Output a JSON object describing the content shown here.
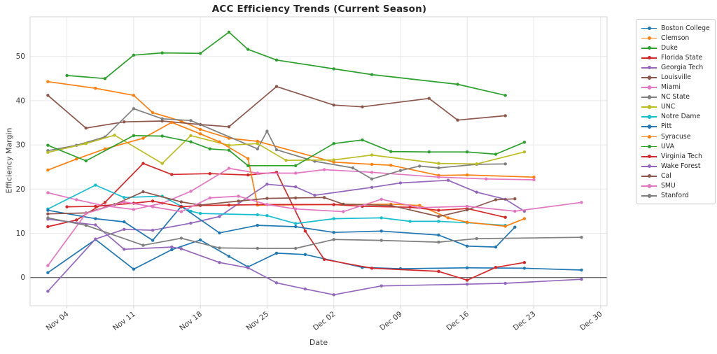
{
  "title": "ACC Efficiency Trends (Current Season)",
  "axes": {
    "xlabel": "Date",
    "ylabel": "Efficiency Margin",
    "x_tick_labels": [
      "Nov 04",
      "Nov 11",
      "Nov 18",
      "Nov 25",
      "Dec 02",
      "Dec 09",
      "Dec 16",
      "Dec 23",
      "Dec 30"
    ],
    "y_tick_labels": [
      "0",
      "10",
      "20",
      "30",
      "40",
      "50"
    ]
  },
  "chart_data": {
    "type": "line",
    "title": "ACC Efficiency Trends (Current Season)",
    "xlabel": "Date",
    "ylabel": "Efficiency Margin",
    "x_tick_labels": [
      "Nov 04",
      "Nov 11",
      "Nov 18",
      "Nov 25",
      "Dec 02",
      "Dec 09",
      "Dec 16",
      "Dec 23",
      "Dec 30"
    ],
    "y_ticks": [
      0,
      10,
      20,
      30,
      40,
      50
    ],
    "ylim": [
      -6.4,
      59.0
    ],
    "grid": true,
    "zero_line": true,
    "legend_position": "outside-right",
    "series": [
      {
        "name": "Boston College",
        "color": "#1f77b4",
        "points": [
          [
            "Nov 02",
            1.1
          ],
          [
            "Nov 07",
            8.6
          ],
          [
            "Nov 11",
            1.9
          ],
          [
            "Nov 15",
            6.3
          ],
          [
            "Nov 18",
            8.5
          ],
          [
            "Nov 21",
            4.8
          ],
          [
            "Nov 23",
            2.4
          ],
          [
            "Nov 26",
            5.5
          ],
          [
            "Nov 29",
            5.2
          ],
          [
            "Dec 05",
            2.3
          ],
          [
            "Dec 09",
            2.0
          ],
          [
            "Dec 16",
            2.2
          ],
          [
            "Dec 22",
            2.1
          ],
          [
            "Dec 28",
            1.7
          ]
        ]
      },
      {
        "name": "Clemson",
        "color": "#ff7f0e",
        "points": [
          [
            "Nov 02",
            44.3
          ],
          [
            "Nov 07",
            42.8
          ],
          [
            "Nov 11",
            41.2
          ],
          [
            "Nov 13",
            37.3
          ],
          [
            "Nov 16",
            35.4
          ],
          [
            "Nov 18",
            33.5
          ],
          [
            "Nov 21",
            31.5
          ],
          [
            "Nov 24",
            30.8
          ],
          [
            "Dec 02",
            26.1
          ],
          [
            "Dec 06",
            25.6
          ],
          [
            "Dec 08",
            25.4
          ],
          [
            "Dec 13",
            23.1
          ],
          [
            "Dec 16",
            23.2
          ],
          [
            "Dec 23",
            22.7
          ]
        ]
      },
      {
        "name": "Duke",
        "color": "#2ca02c",
        "points": [
          [
            "Nov 04",
            45.7
          ],
          [
            "Nov 08",
            45.0
          ],
          [
            "Nov 11",
            50.3
          ],
          [
            "Nov 14",
            50.8
          ],
          [
            "Nov 18",
            50.7
          ],
          [
            "Nov 21",
            55.5
          ],
          [
            "Nov 23",
            51.6
          ],
          [
            "Nov 26",
            49.2
          ],
          [
            "Dec 02",
            47.2
          ],
          [
            "Dec 06",
            45.9
          ],
          [
            "Dec 15",
            43.7
          ],
          [
            "Dec 20",
            41.2
          ]
        ]
      },
      {
        "name": "Florida State",
        "color": "#d62728",
        "points": [
          [
            "Nov 02",
            11.5
          ],
          [
            "Nov 05",
            13.0
          ],
          [
            "Nov 08",
            17.0
          ],
          [
            "Nov 12",
            25.8
          ],
          [
            "Nov 15",
            23.3
          ],
          [
            "Nov 19",
            23.5
          ],
          [
            "Nov 23",
            23.2
          ],
          [
            "Nov 26",
            23.8
          ],
          [
            "Nov 29",
            10.5
          ],
          [
            "Dec 01",
            4.1
          ],
          [
            "Dec 06",
            2.1
          ],
          [
            "Dec 13",
            1.4
          ],
          [
            "Dec 16",
            -0.6
          ],
          [
            "Dec 19",
            2.3
          ],
          [
            "Dec 22",
            3.4
          ]
        ]
      },
      {
        "name": "Georgia Tech",
        "color": "#9467bd",
        "points": [
          [
            "Nov 02",
            -3.1
          ],
          [
            "Nov 07",
            8.7
          ],
          [
            "Nov 10",
            10.9
          ],
          [
            "Nov 13",
            10.7
          ],
          [
            "Nov 17",
            12.3
          ],
          [
            "Nov 20",
            13.8
          ],
          [
            "Nov 25",
            21.1
          ],
          [
            "Nov 28",
            20.5
          ],
          [
            "Nov 30",
            18.6
          ],
          [
            "Dec 06",
            20.4
          ],
          [
            "Dec 09",
            21.4
          ],
          [
            "Dec 14",
            22.0
          ],
          [
            "Dec 17",
            19.3
          ],
          [
            "Dec 20",
            17.7
          ],
          [
            "Dec 22",
            15.0
          ]
        ]
      },
      {
        "name": "Louisville",
        "color": "#8c564b",
        "points": [
          [
            "Nov 02",
            41.2
          ],
          [
            "Nov 06",
            33.8
          ],
          [
            "Nov 10",
            35.2
          ],
          [
            "Nov 14",
            35.4
          ],
          [
            "Nov 18",
            34.6
          ],
          [
            "Nov 21",
            34.1
          ],
          [
            "Nov 26",
            43.2
          ],
          [
            "Dec 02",
            39.0
          ],
          [
            "Dec 05",
            38.6
          ],
          [
            "Dec 12",
            40.5
          ],
          [
            "Dec 15",
            35.6
          ],
          [
            "Dec 20",
            36.6
          ]
        ]
      },
      {
        "name": "Miami",
        "color": "#e377c2",
        "points": [
          [
            "Nov 02",
            19.2
          ],
          [
            "Nov 05",
            17.6
          ],
          [
            "Nov 08",
            16.2
          ],
          [
            "Nov 11",
            15.4
          ],
          [
            "Nov 14",
            16.8
          ],
          [
            "Nov 17",
            19.5
          ],
          [
            "Nov 21",
            24.7
          ],
          [
            "Nov 24",
            23.6
          ],
          [
            "Nov 28",
            23.6
          ],
          [
            "Dec 01",
            24.4
          ],
          [
            "Dec 06",
            23.8
          ],
          [
            "Dec 13",
            22.7
          ],
          [
            "Dec 18",
            22.3
          ],
          [
            "Dec 23",
            22.1
          ]
        ]
      },
      {
        "name": "NC State",
        "color": "#7f7f7f",
        "points": [
          [
            "Nov 02",
            28.7
          ],
          [
            "Nov 05",
            29.9
          ],
          [
            "Nov 08",
            31.8
          ],
          [
            "Nov 11",
            38.2
          ],
          [
            "Nov 14",
            35.9
          ],
          [
            "Nov 17",
            35.5
          ],
          [
            "Nov 24",
            29.1
          ],
          [
            "Nov 25",
            33.1
          ],
          [
            "Nov 26",
            28.9
          ],
          [
            "Nov 30",
            26.3
          ],
          [
            "Dec 04",
            24.8
          ],
          [
            "Dec 06",
            22.3
          ],
          [
            "Dec 09",
            24.2
          ],
          [
            "Dec 11",
            25.2
          ],
          [
            "Dec 13",
            24.8
          ],
          [
            "Dec 17",
            25.6
          ],
          [
            "Dec 20",
            25.7
          ]
        ]
      },
      {
        "name": "UNC",
        "color": "#bcbd22",
        "points": [
          [
            "Nov 02",
            28.3
          ],
          [
            "Nov 06",
            30.3
          ],
          [
            "Nov 09",
            32.2
          ],
          [
            "Nov 14",
            25.8
          ],
          [
            "Nov 17",
            32.1
          ],
          [
            "Nov 21",
            29.9
          ],
          [
            "Nov 24",
            30.3
          ],
          [
            "Nov 27",
            26.5
          ],
          [
            "Dec 02",
            26.6
          ],
          [
            "Dec 06",
            27.7
          ],
          [
            "Dec 13",
            25.8
          ],
          [
            "Dec 17",
            25.7
          ],
          [
            "Dec 22",
            28.4
          ]
        ]
      },
      {
        "name": "Notre Dame",
        "color": "#17becf",
        "points": [
          [
            "Nov 02",
            15.5
          ],
          [
            "Nov 07",
            20.9
          ],
          [
            "Nov 10",
            18.1
          ],
          [
            "Nov 14",
            18.4
          ],
          [
            "Nov 17",
            15.0
          ],
          [
            "Nov 18",
            14.5
          ],
          [
            "Nov 24",
            14.2
          ],
          [
            "Nov 25",
            14.0
          ],
          [
            "Nov 28",
            12.2
          ],
          [
            "Dec 02",
            13.3
          ],
          [
            "Dec 07",
            13.5
          ],
          [
            "Dec 10",
            12.7
          ],
          [
            "Dec 13",
            12.7
          ],
          [
            "Dec 16",
            12.4
          ],
          [
            "Dec 20",
            11.8
          ]
        ]
      },
      {
        "name": "Pitt",
        "color": "#1f77b4",
        "points": [
          [
            "Nov 02",
            15.2
          ],
          [
            "Nov 07",
            13.3
          ],
          [
            "Nov 10",
            12.6
          ],
          [
            "Nov 13",
            8.4
          ],
          [
            "Nov 16",
            16.1
          ],
          [
            "Nov 20",
            10.1
          ],
          [
            "Nov 24",
            11.8
          ],
          [
            "Nov 28",
            11.5
          ],
          [
            "Dec 02",
            10.2
          ],
          [
            "Dec 07",
            10.5
          ],
          [
            "Dec 13",
            9.6
          ],
          [
            "Dec 16",
            7.1
          ],
          [
            "Dec 19",
            6.9
          ],
          [
            "Dec 21",
            11.4
          ]
        ]
      },
      {
        "name": "Syracuse",
        "color": "#ff7f0e",
        "points": [
          [
            "Nov 02",
            24.3
          ],
          [
            "Nov 05",
            26.8
          ],
          [
            "Nov 08",
            29.1
          ],
          [
            "Nov 12",
            31.5
          ],
          [
            "Nov 15",
            35.1
          ],
          [
            "Nov 18",
            32.5
          ],
          [
            "Nov 20",
            30.7
          ],
          [
            "Nov 23",
            26.9
          ],
          [
            "Nov 24",
            16.4
          ],
          [
            "Dec 02",
            16.5
          ],
          [
            "Dec 08",
            16.6
          ],
          [
            "Dec 11",
            16.3
          ],
          [
            "Dec 14",
            13.5
          ],
          [
            "Dec 16",
            12.5
          ],
          [
            "Dec 20",
            11.6
          ],
          [
            "Dec 22",
            13.3
          ]
        ]
      },
      {
        "name": "UVA",
        "color": "#2ca02c",
        "points": [
          [
            "Nov 02",
            29.9
          ],
          [
            "Nov 06",
            26.4
          ],
          [
            "Nov 11",
            32.1
          ],
          [
            "Nov 14",
            32.0
          ],
          [
            "Nov 17",
            30.7
          ],
          [
            "Nov 19",
            29.1
          ],
          [
            "Nov 21",
            28.8
          ],
          [
            "Nov 23",
            25.3
          ],
          [
            "Nov 28",
            25.3
          ],
          [
            "Dec 02",
            30.3
          ],
          [
            "Dec 05",
            31.1
          ],
          [
            "Dec 08",
            28.5
          ],
          [
            "Dec 12",
            28.4
          ],
          [
            "Dec 16",
            28.4
          ],
          [
            "Dec 19",
            27.9
          ],
          [
            "Dec 22",
            30.6
          ]
        ]
      },
      {
        "name": "Virginia Tech",
        "color": "#d62728",
        "points": [
          [
            "Nov 04",
            16.0
          ],
          [
            "Nov 07",
            16.1
          ],
          [
            "Nov 11",
            16.8
          ],
          [
            "Nov 13",
            17.3
          ],
          [
            "Nov 16",
            16.0
          ],
          [
            "Nov 18",
            16.3
          ],
          [
            "Nov 21",
            16.4
          ],
          [
            "Nov 25",
            16.5
          ],
          [
            "Dec 02",
            16.5
          ],
          [
            "Dec 05",
            16.1
          ],
          [
            "Dec 10",
            15.9
          ],
          [
            "Dec 13",
            15.2
          ],
          [
            "Dec 16",
            15.6
          ],
          [
            "Dec 20",
            13.6
          ]
        ]
      },
      {
        "name": "Wake Forest",
        "color": "#9467bd",
        "points": [
          [
            "Nov 02",
            13.2
          ],
          [
            "Nov 07",
            11.9
          ],
          [
            "Nov 10",
            6.4
          ],
          [
            "Nov 15",
            6.9
          ],
          [
            "Nov 16",
            6.5
          ],
          [
            "Nov 20",
            3.4
          ],
          [
            "Nov 23",
            2.2
          ],
          [
            "Nov 26",
            -1.2
          ],
          [
            "Nov 29",
            -2.6
          ],
          [
            "Dec 02",
            -3.9
          ],
          [
            "Dec 07",
            -1.9
          ],
          [
            "Dec 16",
            -1.5
          ],
          [
            "Dec 20",
            -1.3
          ],
          [
            "Dec 28",
            -0.4
          ]
        ]
      },
      {
        "name": "Cal",
        "color": "#8c564b",
        "points": [
          [
            "Nov 02",
            14.4
          ],
          [
            "Nov 06",
            14.6
          ],
          [
            "Nov 09",
            16.5
          ],
          [
            "Nov 12",
            19.4
          ],
          [
            "Nov 16",
            17.1
          ],
          [
            "Nov 18",
            16.4
          ],
          [
            "Nov 22",
            17.3
          ],
          [
            "Nov 25",
            17.9
          ],
          [
            "Nov 28",
            18.0
          ],
          [
            "Dec 01",
            18.1
          ],
          [
            "Dec 03",
            16.6
          ],
          [
            "Dec 08",
            16.3
          ],
          [
            "Dec 13",
            13.8
          ],
          [
            "Dec 16",
            15.3
          ],
          [
            "Dec 19",
            17.6
          ],
          [
            "Dec 21",
            17.8
          ]
        ]
      },
      {
        "name": "SMU",
        "color": "#e377c2",
        "points": [
          [
            "Nov 02",
            2.7
          ],
          [
            "Nov 06",
            14.5
          ],
          [
            "Nov 10",
            17.1
          ],
          [
            "Nov 13",
            16.0
          ],
          [
            "Nov 16",
            14.9
          ],
          [
            "Nov 19",
            18.0
          ],
          [
            "Nov 22",
            18.4
          ],
          [
            "Nov 25",
            16.5
          ],
          [
            "Nov 28",
            15.5
          ],
          [
            "Dec 03",
            14.9
          ],
          [
            "Dec 07",
            17.7
          ],
          [
            "Dec 11",
            15.8
          ],
          [
            "Dec 16",
            16.1
          ],
          [
            "Dec 21",
            15.0
          ],
          [
            "Dec 28",
            17.0
          ]
        ]
      },
      {
        "name": "Stanford",
        "color": "#7f7f7f",
        "points": [
          [
            "Nov 02",
            13.5
          ],
          [
            "Nov 06",
            11.8
          ],
          [
            "Nov 12",
            7.3
          ],
          [
            "Nov 16",
            8.9
          ],
          [
            "Nov 20",
            6.7
          ],
          [
            "Nov 24",
            6.6
          ],
          [
            "Nov 28",
            6.6
          ],
          [
            "Dec 02",
            8.6
          ],
          [
            "Dec 07",
            8.4
          ],
          [
            "Dec 13",
            8.0
          ],
          [
            "Dec 17",
            8.8
          ],
          [
            "Dec 28",
            9.1
          ]
        ]
      }
    ]
  },
  "style": {
    "grid_color": "#e8e8e8",
    "spine_color": "#d4d4d4",
    "zero_line_color": "#3c3c3c",
    "tick_label_color": "#3b3b3b",
    "title_color": "#262626",
    "background": "#ffffff"
  }
}
